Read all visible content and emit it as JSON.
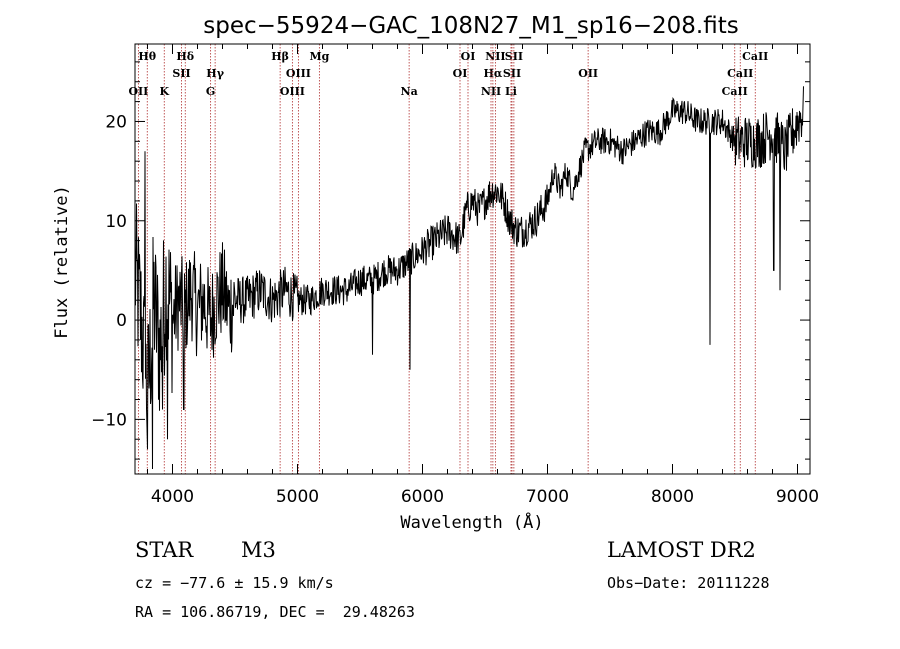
{
  "chart_data": {
    "type": "line",
    "title": "spec−55924−GAC_108N27_M1_sp16−208.fits",
    "xlabel": "Wavelength (Å)",
    "ylabel": "Flux (relative)",
    "xlim": [
      3700,
      9100
    ],
    "ylim": [
      -15.5,
      27.8
    ],
    "xticks": [
      4000,
      5000,
      6000,
      7000,
      8000,
      9000
    ],
    "yticks": [
      -10,
      0,
      10,
      20
    ],
    "grid": false,
    "legend": "none",
    "line_color": "#000000",
    "marker_color": "#b03030",
    "series": [
      {
        "x": [
          3700,
          3750,
          3800,
          3850,
          3900,
          3950,
          4000,
          4050,
          4100,
          4150,
          4200,
          4250,
          4300,
          4350,
          4400,
          4450,
          4500,
          4600,
          4700,
          4800,
          4900,
          5000,
          5100,
          5200,
          5300,
          5400,
          5500,
          5600,
          5700,
          5800,
          5900,
          6000,
          6100,
          6200,
          6300,
          6350,
          6400,
          6450,
          6500,
          6550,
          6600,
          6650,
          6700,
          6750,
          6800,
          6900,
          7000,
          7050,
          7100,
          7150,
          7200,
          7300,
          7400,
          7500,
          7600,
          7700,
          7800,
          7900,
          8000,
          8100,
          8200,
          8300,
          8400,
          8500,
          8600,
          8700,
          8800,
          8900,
          9000,
          9050
        ],
        "y": [
          5,
          0,
          -8,
          2,
          -3,
          4,
          0,
          2,
          1,
          3,
          1,
          2,
          0,
          2,
          3,
          1,
          2,
          2,
          3,
          2,
          3,
          2,
          2,
          3,
          3,
          3,
          4,
          4,
          5,
          5,
          6,
          7,
          8,
          9,
          8,
          11,
          12,
          11,
          12,
          13,
          13,
          12,
          10,
          9,
          9,
          10,
          12,
          15,
          13,
          15,
          13,
          17,
          18,
          18,
          17,
          18,
          19,
          19,
          21,
          21,
          20,
          20,
          20,
          18,
          18,
          18,
          19,
          17,
          20,
          21
        ]
      }
    ],
    "spikes": [
      {
        "x": 3780,
        "y": 17
      },
      {
        "x": 3800,
        "y": -13
      },
      {
        "x": 3840,
        "y": -15
      },
      {
        "x": 3920,
        "y": -9
      },
      {
        "x": 3960,
        "y": -12
      },
      {
        "x": 4090,
        "y": -9
      },
      {
        "x": 5600,
        "y": -3.5
      },
      {
        "x": 5900,
        "y": -5
      },
      {
        "x": 8300,
        "y": -2.5
      },
      {
        "x": 8810,
        "y": 5
      },
      {
        "x": 8860,
        "y": 3
      }
    ],
    "line_markers": [
      {
        "label": "Hθ",
        "x": 3798,
        "row": 0
      },
      {
        "label": "OII",
        "x": 3727,
        "row": 2
      },
      {
        "label": "K",
        "x": 3934,
        "row": 2
      },
      {
        "label": "Hδ",
        "x": 4102,
        "row": 0
      },
      {
        "label": "SII",
        "x": 4072,
        "row": 1
      },
      {
        "label": "Hγ",
        "x": 4341,
        "row": 1
      },
      {
        "label": "G",
        "x": 4305,
        "row": 2
      },
      {
        "label": "Hβ",
        "x": 4861,
        "row": 0
      },
      {
        "label": "OIII",
        "x": 5007,
        "row": 1
      },
      {
        "label": "OIII",
        "x": 4959,
        "row": 2
      },
      {
        "label": "Mg",
        "x": 5175,
        "row": 0
      },
      {
        "label": "Na",
        "x": 5893,
        "row": 2
      },
      {
        "label": "OI",
        "x": 6364,
        "row": 0
      },
      {
        "label": "OI",
        "x": 6300,
        "row": 1
      },
      {
        "label": "NII",
        "x": 6583,
        "row": 0
      },
      {
        "label": "Hα",
        "x": 6563,
        "row": 1
      },
      {
        "label": "NII",
        "x": 6548,
        "row": 2
      },
      {
        "label": "SII",
        "x": 6731,
        "row": 0
      },
      {
        "label": "SII",
        "x": 6716,
        "row": 1
      },
      {
        "label": "Li",
        "x": 6708,
        "row": 2
      },
      {
        "label": "OII",
        "x": 7325,
        "row": 1
      },
      {
        "label": "CaII",
        "x": 8662,
        "row": 0
      },
      {
        "label": "CaII",
        "x": 8542,
        "row": 1
      },
      {
        "label": "CaII",
        "x": 8498,
        "row": 2
      }
    ]
  },
  "info": {
    "object_class": "STAR",
    "subclass": "M3",
    "survey": "LAMOST DR2",
    "cz": "cz = −77.6 ± 15.9 km/s",
    "obs_date": "Obs−Date: 20111228",
    "coords": "RA = 106.86719, DEC =  29.48263"
  }
}
